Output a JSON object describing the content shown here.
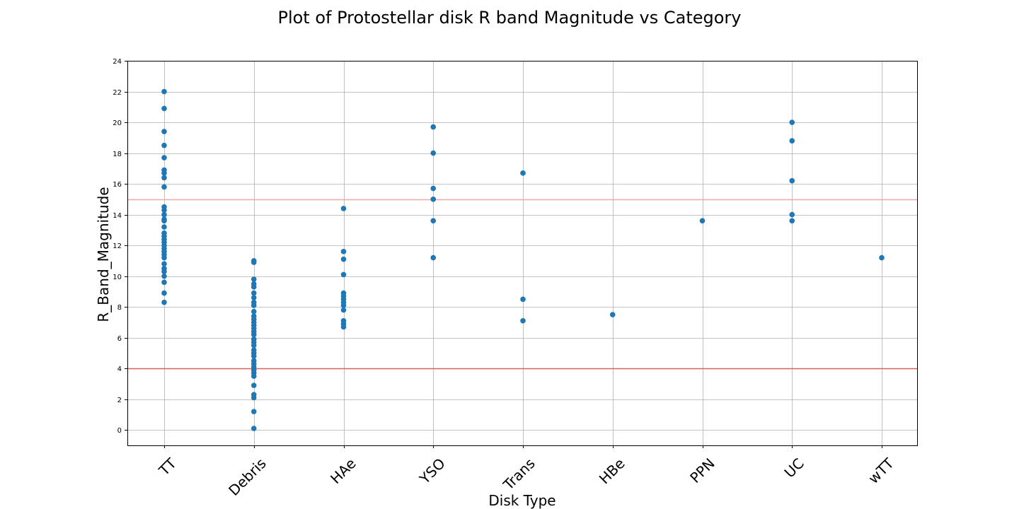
{
  "chart_data": {
    "type": "scatter",
    "title": "Plot of Protostellar disk R band Magnitude vs Category",
    "xlabel": "Disk Type",
    "ylabel": "R_Band_Magnitude",
    "categories": [
      "TT",
      "Debris",
      "HAe",
      "YSO",
      "Trans",
      "HBe",
      "PPN",
      "UC",
      "wTT"
    ],
    "ylim": [
      -1,
      24
    ],
    "yticks": [
      0,
      2,
      4,
      6,
      8,
      10,
      12,
      14,
      16,
      18,
      20,
      22,
      24
    ],
    "grid": true,
    "marker_color": "#1f77b4",
    "reference_lines": [
      {
        "y": 15,
        "color": "#f4a6a6"
      },
      {
        "y": 4,
        "color": "#e05c5c"
      }
    ],
    "points": {
      "TT": [
        22.0,
        20.9,
        19.4,
        18.5,
        17.7,
        16.9,
        16.7,
        16.4,
        15.8,
        14.5,
        14.3,
        14.0,
        13.7,
        13.6,
        13.2,
        12.8,
        12.6,
        12.4,
        12.2,
        12.0,
        11.8,
        11.6,
        11.4,
        11.2,
        10.8,
        10.5,
        10.3,
        10.0,
        9.6,
        8.9,
        8.3
      ],
      "Debris": [
        11.0,
        10.9,
        9.8,
        9.5,
        9.3,
        8.9,
        8.6,
        8.3,
        8.1,
        7.7,
        7.4,
        7.2,
        7.0,
        6.8,
        6.6,
        6.4,
        6.2,
        5.9,
        5.7,
        5.5,
        5.2,
        5.0,
        4.8,
        4.5,
        4.3,
        4.1,
        3.9,
        3.7,
        3.5,
        2.9,
        2.3,
        2.1,
        1.2,
        0.1
      ],
      "HAe": [
        14.4,
        11.6,
        11.1,
        10.1,
        8.9,
        8.7,
        8.5,
        8.3,
        8.1,
        7.8,
        7.1,
        6.9,
        6.7
      ],
      "YSO": [
        19.7,
        18.0,
        15.7,
        15.0,
        13.6,
        11.2
      ],
      "Trans": [
        16.7,
        8.5,
        7.1
      ],
      "HBe": [
        7.5
      ],
      "PPN": [
        13.6
      ],
      "UC": [
        20.0,
        18.8,
        16.2,
        14.0,
        13.6
      ],
      "wTT": [
        11.2
      ]
    }
  }
}
